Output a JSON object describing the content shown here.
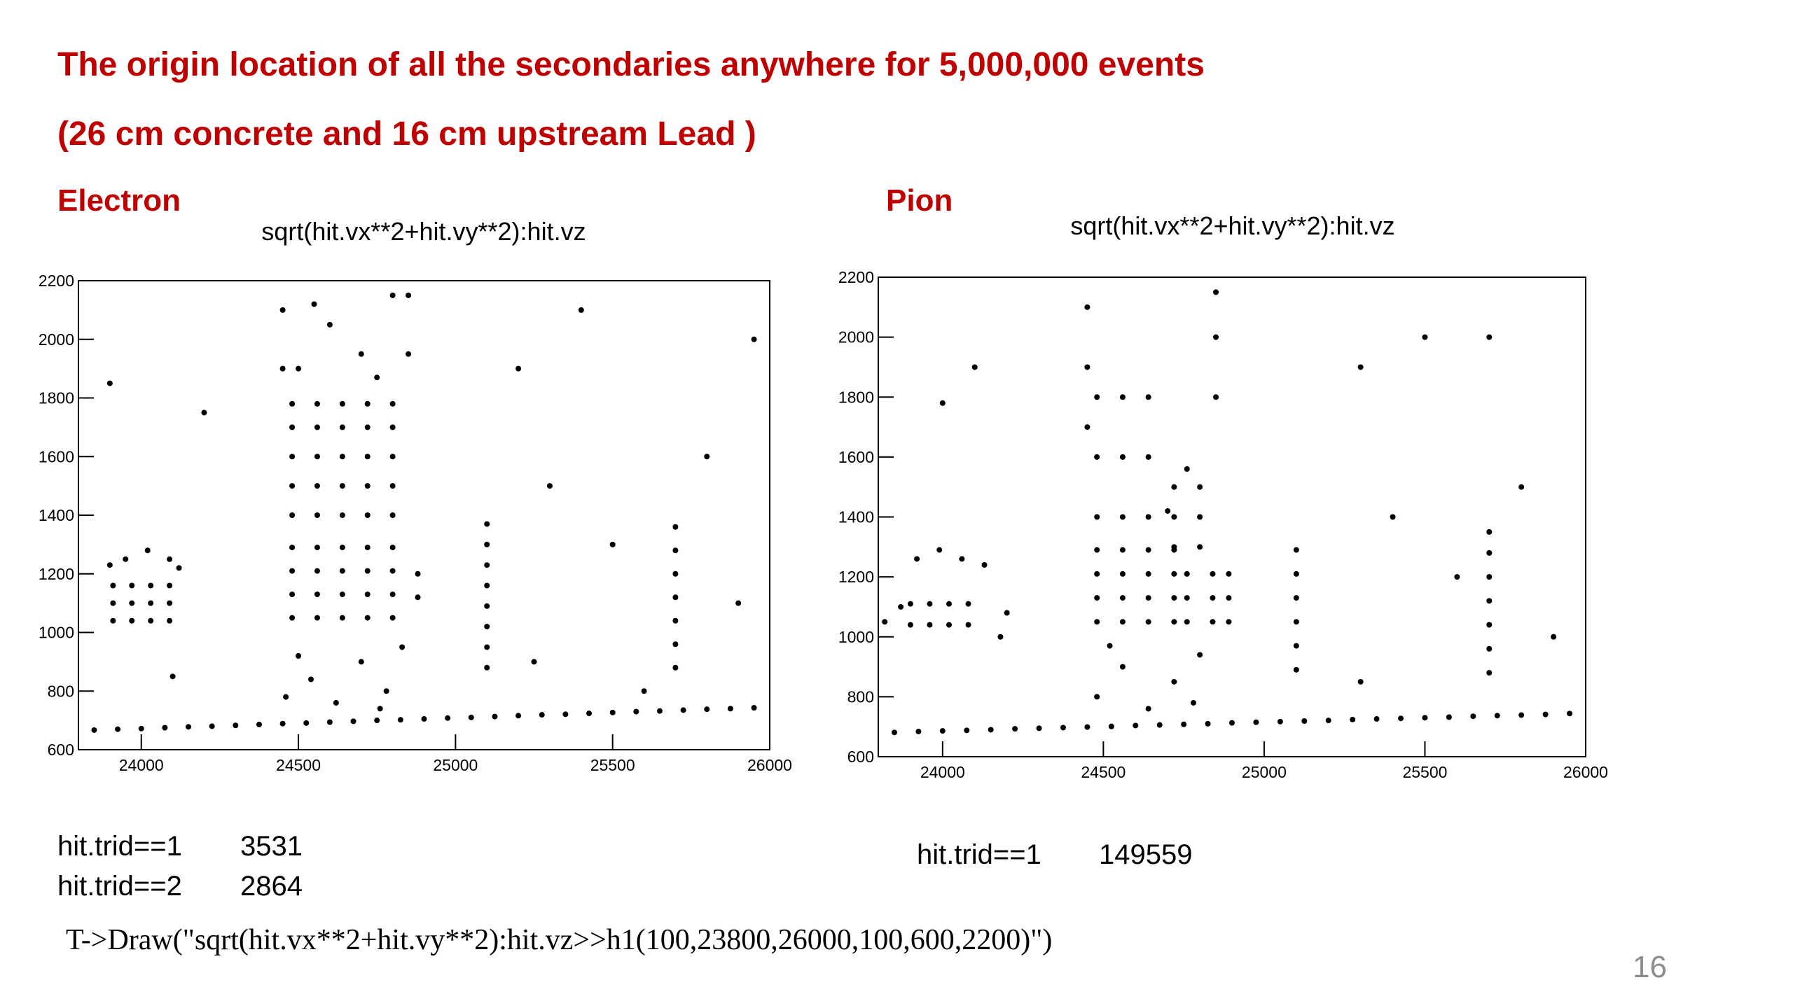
{
  "slide": {
    "title": "The origin location of all the secondaries anywhere for 5,000,000 events",
    "subtitle": "(26 cm concrete and 16 cm upstream Lead )",
    "panel_labels": [
      "Electron",
      "Pion"
    ],
    "counts": [
      [
        {
          "label": "hit.trid==1",
          "count": 3531
        },
        {
          "label": "hit.trid==2",
          "count": 2864
        }
      ],
      [
        {
          "label": "hit.trid==1",
          "count": 149559
        }
      ]
    ],
    "command": "T->Draw(\"sqrt(hit.vx**2+hit.vy**2):hit.vz>>h1(100,23800,26000,100,600,2200)\")",
    "page_number": 16
  },
  "chart_data": [
    {
      "type": "scatter",
      "title": "sqrt(hit.vx**2+hit.vy**2):hit.vz",
      "color": "#000000",
      "xlim": [
        23800,
        26000
      ],
      "ylim": [
        600,
        2200
      ],
      "xticks": [
        24000,
        24500,
        25000,
        25500,
        26000
      ],
      "yticks": [
        600,
        800,
        1000,
        1200,
        1400,
        1600,
        1800,
        2000,
        2200
      ],
      "x": [
        23850,
        23925,
        24000,
        24075,
        24150,
        24225,
        24300,
        24375,
        24450,
        24525,
        24600,
        24675,
        24750,
        24825,
        24900,
        24975,
        25050,
        25125,
        25200,
        25275,
        25350,
        25425,
        25500,
        25575,
        25650,
        25725,
        25800,
        25875,
        25950,
        24480,
        24560,
        24640,
        24720,
        24800,
        24480,
        24560,
        24640,
        24720,
        24800,
        24480,
        24560,
        24640,
        24720,
        24800,
        24480,
        24560,
        24640,
        24720,
        24800,
        24480,
        24560,
        24640,
        24720,
        24800,
        24480,
        24560,
        24640,
        24720,
        24800,
        24480,
        24560,
        24640,
        24720,
        24800,
        24480,
        24560,
        24640,
        24720,
        24800,
        24480,
        24560,
        24640,
        24720,
        24800,
        24880,
        24880,
        23910,
        23970,
        24030,
        24090,
        23910,
        23970,
        24030,
        24090,
        23910,
        23970,
        24030,
        24090,
        23950,
        24020,
        24090,
        24120,
        23900,
        25100,
        25100,
        25100,
        25100,
        25100,
        25100,
        25100,
        25100,
        25700,
        25700,
        25700,
        25700,
        25700,
        25700,
        25700,
        24460,
        24540,
        24620,
        24700,
        24780,
        24830,
        24500,
        24760,
        24500,
        24600,
        24700,
        24800,
        24550,
        24750,
        24450,
        24450,
        24850,
        24850,
        23900,
        24200,
        25200,
        25400,
        25300,
        25500,
        25800,
        25900,
        25250,
        25600,
        24100,
        25950
      ],
      "values": [
        667,
        670,
        672,
        675,
        678,
        680,
        683,
        686,
        689,
        691,
        694,
        697,
        700,
        702,
        705,
        708,
        710,
        713,
        716,
        719,
        721,
        724,
        727,
        730,
        732,
        735,
        738,
        740,
        743,
        1050,
        1050,
        1050,
        1050,
        1050,
        1130,
        1130,
        1130,
        1130,
        1130,
        1210,
        1210,
        1210,
        1210,
        1210,
        1290,
        1290,
        1290,
        1290,
        1290,
        1400,
        1400,
        1400,
        1400,
        1400,
        1500,
        1500,
        1500,
        1500,
        1500,
        1600,
        1600,
        1600,
        1600,
        1600,
        1700,
        1700,
        1700,
        1700,
        1700,
        1780,
        1780,
        1780,
        1780,
        1780,
        1120,
        1200,
        1040,
        1040,
        1040,
        1040,
        1100,
        1100,
        1100,
        1100,
        1160,
        1160,
        1160,
        1160,
        1250,
        1280,
        1250,
        1220,
        1230,
        880,
        950,
        1020,
        1090,
        1160,
        1230,
        1300,
        1370,
        880,
        960,
        1040,
        1120,
        1200,
        1280,
        1360,
        780,
        840,
        760,
        900,
        800,
        950,
        920,
        740,
        1900,
        2050,
        1950,
        2150,
        2120,
        1870,
        1900,
        2100,
        1950,
        2150,
        1850,
        1750,
        1900,
        2100,
        1500,
        1300,
        1600,
        1100,
        900,
        800,
        850,
        2000
      ]
    },
    {
      "type": "scatter",
      "title": "sqrt(hit.vx**2+hit.vy**2):hit.vz",
      "color": "#000000",
      "xlim": [
        23800,
        26000
      ],
      "ylim": [
        600,
        2200
      ],
      "xticks": [
        24000,
        24500,
        25000,
        25500,
        26000
      ],
      "yticks": [
        600,
        800,
        1000,
        1200,
        1400,
        1600,
        1800,
        2000,
        2200
      ],
      "x": [
        23850,
        23925,
        24000,
        24075,
        24150,
        24225,
        24300,
        24375,
        24450,
        24525,
        24600,
        24675,
        24750,
        24825,
        24900,
        24975,
        25050,
        25125,
        25200,
        25275,
        25350,
        25425,
        25500,
        25575,
        25650,
        25725,
        25800,
        25875,
        25950,
        24480,
        24560,
        24640,
        24720,
        24480,
        24560,
        24640,
        24720,
        24480,
        24560,
        24640,
        24720,
        24480,
        24560,
        24640,
        24720,
        24760,
        24840,
        24890,
        24760,
        24840,
        24890,
        24760,
        24840,
        24890,
        24720,
        24800,
        24720,
        24800,
        24720,
        24800,
        24700,
        24760,
        24480,
        24560,
        24640,
        24480,
        24560,
        24640,
        24480,
        24560,
        24640,
        24450,
        24450,
        24450,
        24850,
        24850,
        24850,
        24480,
        24560,
        24640,
        24720,
        24800,
        24520,
        24780,
        23900,
        23960,
        24020,
        24080,
        23900,
        23960,
        24020,
        24080,
        23920,
        23990,
        24060,
        24130,
        23870,
        23820,
        24200,
        24180,
        25100,
        25100,
        25100,
        25100,
        25100,
        25100,
        25700,
        25700,
        25700,
        25700,
        25700,
        25700,
        25700,
        24000,
        25300,
        25500,
        25700,
        25400,
        25800,
        25900,
        25300,
        25600,
        24100
      ],
      "values": [
        681,
        684,
        686,
        688,
        690,
        693,
        695,
        697,
        699,
        701,
        704,
        706,
        708,
        710,
        713,
        715,
        717,
        719,
        721,
        724,
        726,
        728,
        730,
        732,
        735,
        737,
        739,
        741,
        744,
        1050,
        1050,
        1050,
        1050,
        1130,
        1130,
        1130,
        1130,
        1210,
        1210,
        1210,
        1210,
        1290,
        1290,
        1290,
        1290,
        1050,
        1050,
        1050,
        1130,
        1130,
        1130,
        1210,
        1210,
        1210,
        1300,
        1300,
        1400,
        1400,
        1500,
        1500,
        1420,
        1560,
        1400,
        1400,
        1400,
        1600,
        1600,
        1600,
        1800,
        1800,
        1800,
        1700,
        1900,
        2100,
        1800,
        2000,
        2150,
        800,
        900,
        760,
        850,
        940,
        970,
        780,
        1040,
        1040,
        1040,
        1040,
        1110,
        1110,
        1110,
        1110,
        1260,
        1290,
        1260,
        1240,
        1100,
        1050,
        1080,
        1000,
        890,
        970,
        1050,
        1130,
        1210,
        1290,
        880,
        960,
        1040,
        1120,
        1200,
        1280,
        1350,
        1780,
        1900,
        2000,
        2000,
        1400,
        1500,
        1000,
        850,
        1200,
        1900
      ]
    }
  ]
}
